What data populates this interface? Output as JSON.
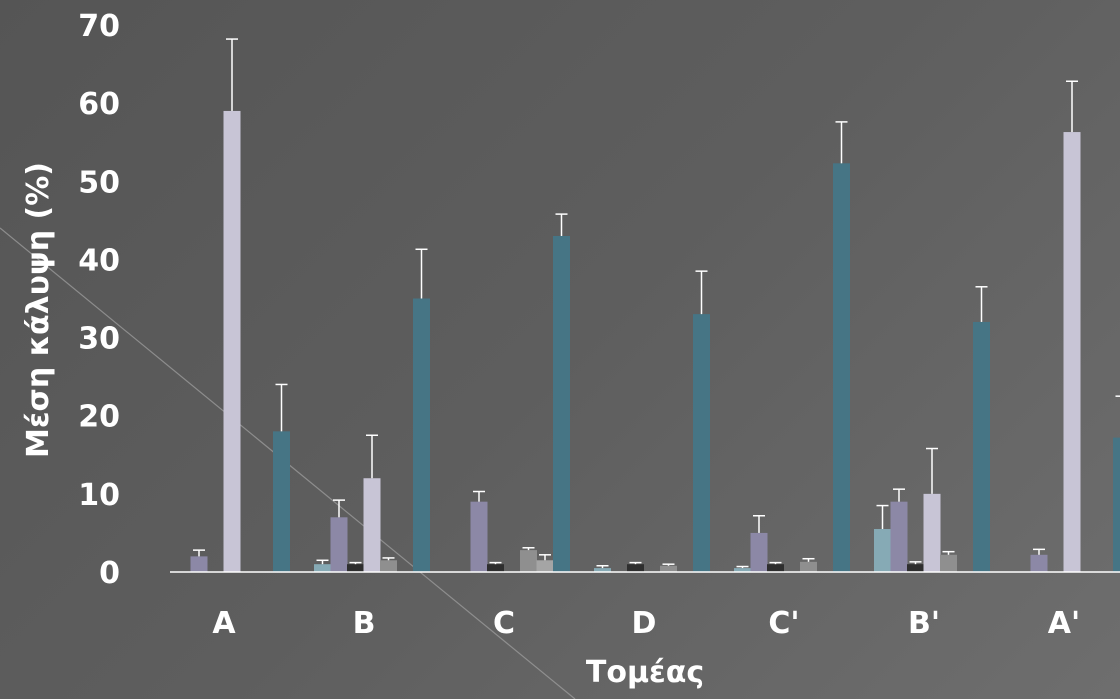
{
  "chart_data": {
    "type": "bar",
    "title": "",
    "xlabel": "Τομέας",
    "ylabel": "Μέση κάλυψη (%)",
    "ylim": [
      0,
      70
    ],
    "yticks": [
      "0",
      "10",
      "20",
      "30",
      "40",
      "50",
      "60",
      "70"
    ],
    "categories": [
      "A",
      "B",
      "C",
      "D",
      "C'",
      "B'",
      "A'"
    ],
    "grid": false,
    "legend": "none",
    "series": [
      {
        "color": "#86aab5",
        "values": [
          0,
          1,
          0,
          0.5,
          0.5,
          5.5,
          0
        ],
        "errors": [
          0,
          0.5,
          0,
          0.3,
          0.2,
          3,
          0
        ]
      },
      {
        "color": "#8c88a6",
        "values": [
          2,
          7,
          9,
          0,
          5,
          9,
          2.2
        ],
        "errors": [
          0.8,
          2.2,
          1.3,
          0,
          2.2,
          1.6,
          0.7
        ]
      },
      {
        "color": "#2e2e2e",
        "values": [
          0,
          1,
          1,
          1,
          1,
          1,
          0
        ],
        "errors": [
          0,
          0.2,
          0.2,
          0.2,
          0.2,
          0.3,
          0
        ]
      },
      {
        "color": "#c8c5d6",
        "values": [
          59,
          12,
          0,
          0,
          0,
          10,
          56.3
        ],
        "errors": [
          9.2,
          5.5,
          0,
          0,
          0,
          5.8,
          6.5
        ]
      },
      {
        "color": "#8f8f8f",
        "values": [
          0,
          1.5,
          2.8,
          0.8,
          1.3,
          2.2,
          0
        ],
        "errors": [
          0,
          0.3,
          0.3,
          0.2,
          0.4,
          0.4,
          0
        ]
      },
      {
        "color": "#a5a5a5",
        "values": [
          0,
          0,
          1.5,
          0,
          0,
          0,
          0
        ],
        "errors": [
          0,
          0,
          0.7,
          0,
          0,
          0,
          0
        ]
      },
      {
        "color": "#467585",
        "values": [
          18,
          35,
          43,
          33,
          52.3,
          32,
          17.2
        ],
        "errors": [
          6,
          6.3,
          2.8,
          5.5,
          5.3,
          4.5,
          5.3
        ]
      }
    ]
  }
}
